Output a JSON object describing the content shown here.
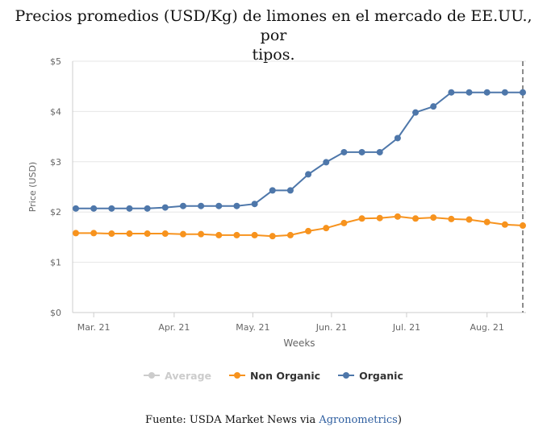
{
  "title_line1": "Precios promedios (USD/Kg) de limones en el mercado de EE.UU., por",
  "title_line2": "tipos.",
  "source": {
    "prefix": "Fuente: USDA Market News via ",
    "link": "Agronometrics",
    "suffix": ")"
  },
  "legend": [
    {
      "name": "Average",
      "color": "#cccccc",
      "hidden": true
    },
    {
      "name": "Non Organic",
      "color": "#f7931e",
      "hidden": false
    },
    {
      "name": "Organic",
      "color": "#4e77aa",
      "hidden": false
    }
  ],
  "chart_data": {
    "type": "line",
    "title": "Precios promedios (USD/Kg) de limones en el mercado de EE.UU., por tipos.",
    "xlabel": "Weeks",
    "ylabel": "Price (USD)",
    "ylim": [
      0,
      5
    ],
    "yticks": [
      0,
      1,
      2,
      3,
      4,
      5
    ],
    "ytick_labels": [
      "$0",
      "$1",
      "$2",
      "$3",
      "$4",
      "$5"
    ],
    "x_count": 26,
    "x_tick_labels": [
      {
        "label": "Mar. 21",
        "index": 1
      },
      {
        "label": "Apr. 21",
        "index": 5.5
      },
      {
        "label": "May. 21",
        "index": 9.9
      },
      {
        "label": "Jun. 21",
        "index": 14.3
      },
      {
        "label": "Jul. 21",
        "index": 18.5
      },
      {
        "label": "Aug. 21",
        "index": 23.0
      }
    ],
    "series": [
      {
        "name": "Non Organic",
        "color": "#f7931e",
        "values": [
          1.58,
          1.58,
          1.57,
          1.57,
          1.57,
          1.57,
          1.56,
          1.56,
          1.54,
          1.54,
          1.54,
          1.52,
          1.54,
          1.62,
          1.68,
          1.78,
          1.87,
          1.88,
          1.91,
          1.87,
          1.89,
          1.86,
          1.85,
          1.8,
          1.75,
          1.73
        ]
      },
      {
        "name": "Organic",
        "color": "#4e77aa",
        "values": [
          2.07,
          2.07,
          2.07,
          2.07,
          2.07,
          2.09,
          2.12,
          2.12,
          2.12,
          2.12,
          2.16,
          2.43,
          2.43,
          2.75,
          2.99,
          3.19,
          3.19,
          3.19,
          3.47,
          3.98,
          4.1,
          4.38,
          4.38,
          4.38,
          4.38,
          4.38
        ]
      }
    ],
    "plot_line_index": 25,
    "grid": true
  }
}
